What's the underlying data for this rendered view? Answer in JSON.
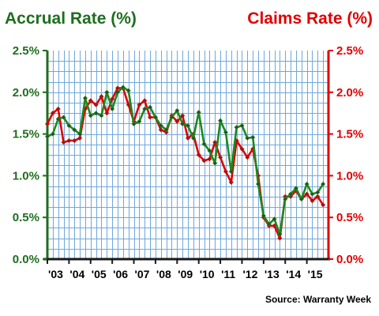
{
  "chart_data": {
    "type": "line",
    "title_left": "Accrual Rate (%)",
    "title_right": "Claims Rate (%)",
    "source": "Source: Warranty Week",
    "x_categories": [
      "'03",
      "'04",
      "'05",
      "'06",
      "'07",
      "'08",
      "'09",
      "'10",
      "'11",
      "'12",
      "'13",
      "'14",
      "'15"
    ],
    "x_range": [
      2003.0,
      2016.0
    ],
    "y_left": {
      "ticks": [
        "0.0%",
        "0.5%",
        "1.0%",
        "1.5%",
        "2.0%",
        "2.5%"
      ],
      "range": [
        0,
        2.5
      ],
      "color": "#1e6e1e"
    },
    "y_right": {
      "ticks": [
        "0.0%",
        "0.5%",
        "1.0%",
        "1.5%",
        "2.0%",
        "2.5%"
      ],
      "range": [
        0,
        2.5
      ],
      "color": "#e00000"
    },
    "grid": {
      "horizontal_step": 0.125,
      "vertical_per_year": 4,
      "color": "#6fa8dc"
    },
    "series": [
      {
        "key": "accrual",
        "color": "#1a8a1a",
        "marker_color": "#2e4a2e",
        "points": [
          [
            2003.0,
            1.47
          ],
          [
            2003.25,
            1.5
          ],
          [
            2003.5,
            1.68
          ],
          [
            2003.75,
            1.7
          ],
          [
            2004.0,
            1.6
          ],
          [
            2004.25,
            1.55
          ],
          [
            2004.5,
            1.5
          ],
          [
            2004.75,
            1.93
          ],
          [
            2005.0,
            1.72
          ],
          [
            2005.25,
            1.75
          ],
          [
            2005.5,
            1.72
          ],
          [
            2005.75,
            2.0
          ],
          [
            2006.0,
            1.8
          ],
          [
            2006.25,
            2.0
          ],
          [
            2006.5,
            2.06
          ],
          [
            2006.75,
            2.02
          ],
          [
            2007.0,
            1.62
          ],
          [
            2007.25,
            1.65
          ],
          [
            2007.5,
            1.8
          ],
          [
            2007.75,
            1.82
          ],
          [
            2008.0,
            1.7
          ],
          [
            2008.25,
            1.6
          ],
          [
            2008.5,
            1.55
          ],
          [
            2008.75,
            1.7
          ],
          [
            2009.0,
            1.78
          ],
          [
            2009.25,
            1.62
          ],
          [
            2009.5,
            1.6
          ],
          [
            2009.75,
            1.45
          ],
          [
            2010.0,
            1.76
          ],
          [
            2010.25,
            1.38
          ],
          [
            2010.5,
            1.3
          ],
          [
            2010.75,
            1.15
          ],
          [
            2011.0,
            1.66
          ],
          [
            2011.25,
            1.52
          ],
          [
            2011.5,
            1.05
          ],
          [
            2011.75,
            1.58
          ],
          [
            2012.0,
            1.6
          ],
          [
            2012.25,
            1.45
          ],
          [
            2012.5,
            1.46
          ],
          [
            2012.75,
            0.9
          ],
          [
            2013.0,
            0.52
          ],
          [
            2013.25,
            0.42
          ],
          [
            2013.5,
            0.48
          ],
          [
            2013.75,
            0.3
          ],
          [
            2014.0,
            0.72
          ],
          [
            2014.25,
            0.78
          ],
          [
            2014.5,
            0.85
          ],
          [
            2014.75,
            0.72
          ],
          [
            2015.0,
            0.9
          ],
          [
            2015.25,
            0.78
          ],
          [
            2015.5,
            0.8
          ],
          [
            2015.75,
            0.9
          ]
        ]
      },
      {
        "key": "claims",
        "color": "#e00000",
        "marker_color": "#8a2020",
        "points": [
          [
            2003.0,
            1.62
          ],
          [
            2003.25,
            1.75
          ],
          [
            2003.5,
            1.8
          ],
          [
            2003.75,
            1.4
          ],
          [
            2004.0,
            1.42
          ],
          [
            2004.25,
            1.42
          ],
          [
            2004.5,
            1.45
          ],
          [
            2004.75,
            1.8
          ],
          [
            2005.0,
            1.9
          ],
          [
            2005.25,
            1.85
          ],
          [
            2005.5,
            1.95
          ],
          [
            2005.75,
            1.75
          ],
          [
            2006.0,
            1.92
          ],
          [
            2006.25,
            2.05
          ],
          [
            2006.5,
            2.05
          ],
          [
            2006.75,
            1.85
          ],
          [
            2007.0,
            1.65
          ],
          [
            2007.25,
            1.85
          ],
          [
            2007.5,
            1.9
          ],
          [
            2007.75,
            1.7
          ],
          [
            2008.0,
            1.7
          ],
          [
            2008.25,
            1.55
          ],
          [
            2008.5,
            1.52
          ],
          [
            2008.75,
            1.72
          ],
          [
            2009.0,
            1.65
          ],
          [
            2009.25,
            1.72
          ],
          [
            2009.5,
            1.45
          ],
          [
            2009.75,
            1.5
          ],
          [
            2010.0,
            1.25
          ],
          [
            2010.25,
            1.18
          ],
          [
            2010.5,
            1.2
          ],
          [
            2010.75,
            1.4
          ],
          [
            2011.0,
            1.22
          ],
          [
            2011.25,
            1.05
          ],
          [
            2011.5,
            0.92
          ],
          [
            2011.75,
            1.42
          ],
          [
            2012.0,
            1.32
          ],
          [
            2012.25,
            1.22
          ],
          [
            2012.5,
            1.32
          ],
          [
            2012.75,
            1.0
          ],
          [
            2013.0,
            0.5
          ],
          [
            2013.25,
            0.4
          ],
          [
            2013.5,
            0.4
          ],
          [
            2013.75,
            0.25
          ],
          [
            2014.0,
            0.75
          ],
          [
            2014.25,
            0.75
          ],
          [
            2014.5,
            0.82
          ],
          [
            2014.75,
            0.72
          ],
          [
            2015.0,
            0.78
          ],
          [
            2015.25,
            0.7
          ],
          [
            2015.5,
            0.75
          ],
          [
            2015.75,
            0.65
          ]
        ]
      }
    ]
  }
}
